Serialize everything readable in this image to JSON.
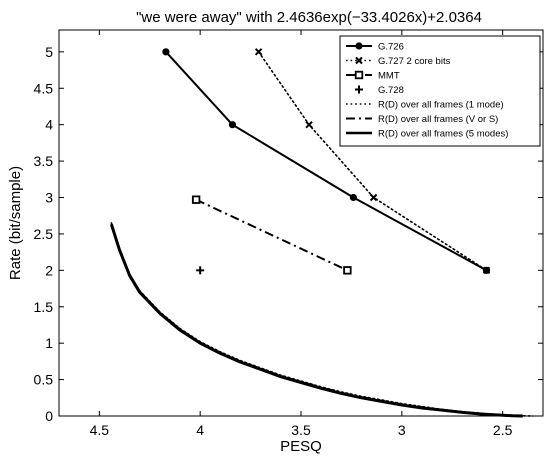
{
  "chart_data": {
    "type": "line",
    "title": "\"we were away\" with 2.4636exp(−33.4026x)+2.0364",
    "xlabel": "PESQ",
    "ylabel": "Rate (bit/sample)",
    "x_reversed": true,
    "xlim": [
      4.7,
      2.3
    ],
    "ylim": [
      0,
      5.3
    ],
    "xticks": [
      4.5,
      4,
      3.5,
      3,
      2.5
    ],
    "xtick_labels": [
      "4.5",
      "4",
      "3.5",
      "3",
      "2.5"
    ],
    "yticks": [
      0,
      0.5,
      1,
      1.5,
      2,
      2.5,
      3,
      3.5,
      4,
      4.5,
      5
    ],
    "ytick_labels": [
      "0",
      "0.5",
      "1",
      "1.5",
      "2",
      "2.5",
      "3",
      "3.5",
      "4",
      "4.5",
      "5"
    ],
    "grid": false,
    "legend_position": "top-right",
    "series": [
      {
        "name": "G.726",
        "style": "solid",
        "marker": "circle",
        "color": "#000000",
        "x": [
          4.17,
          3.84,
          3.24,
          2.58
        ],
        "y": [
          5,
          4,
          3,
          2
        ]
      },
      {
        "name": "G.727 2 core bits",
        "style": "dotted",
        "marker": "x",
        "color": "#000000",
        "x": [
          3.71,
          3.46,
          3.14,
          2.58
        ],
        "y": [
          5,
          4,
          3,
          2
        ]
      },
      {
        "name": "MMT",
        "style": "dashdot",
        "marker": "square",
        "color": "#000000",
        "x": [
          4.02,
          3.27
        ],
        "y": [
          2.97,
          2
        ]
      },
      {
        "name": "G.728",
        "style": "none",
        "marker": "plus",
        "color": "#000000",
        "x": [
          4.0
        ],
        "y": [
          2
        ]
      },
      {
        "name": "R(D) over all frames (1 mode)",
        "style": "dotted",
        "marker": "none",
        "color": "#000000",
        "x": [
          4.44,
          4.4,
          4.35,
          4.3,
          4.2,
          4.1,
          4.0,
          3.9,
          3.8,
          3.7,
          3.6,
          3.5,
          3.4,
          3.3,
          3.2,
          3.1,
          3.0,
          2.9,
          2.8,
          2.7,
          2.6,
          2.5,
          2.45,
          2.35
        ],
        "y": [
          2.65,
          2.3,
          1.95,
          1.72,
          1.43,
          1.2,
          1.02,
          0.88,
          0.76,
          0.66,
          0.56,
          0.48,
          0.4,
          0.33,
          0.27,
          0.22,
          0.17,
          0.13,
          0.09,
          0.06,
          0.035,
          0.015,
          0.005,
          0.0
        ]
      },
      {
        "name": "R(D) over all frames (V or S)",
        "style": "dashdot",
        "marker": "none",
        "color": "#000000",
        "x": [
          4.44,
          4.4,
          4.35,
          4.3,
          4.2,
          4.1,
          4.0,
          3.9,
          3.8,
          3.7,
          3.6,
          3.5,
          3.4,
          3.3,
          3.2,
          3.1,
          3.0,
          2.9,
          2.8,
          2.7,
          2.6,
          2.5,
          2.45,
          2.4
        ],
        "y": [
          2.64,
          2.29,
          1.94,
          1.71,
          1.42,
          1.19,
          1.01,
          0.87,
          0.75,
          0.65,
          0.55,
          0.47,
          0.39,
          0.32,
          0.26,
          0.21,
          0.16,
          0.12,
          0.085,
          0.055,
          0.03,
          0.012,
          0.004,
          0.0
        ]
      },
      {
        "name": "R(D) over all frames (5 modes)",
        "style": "solid-thick",
        "marker": "none",
        "color": "#000000",
        "x": [
          4.44,
          4.4,
          4.35,
          4.3,
          4.2,
          4.1,
          4.0,
          3.9,
          3.8,
          3.7,
          3.6,
          3.5,
          3.4,
          3.3,
          3.2,
          3.1,
          3.0,
          2.9,
          2.8,
          2.7,
          2.6,
          2.5,
          2.45,
          2.4
        ],
        "y": [
          2.63,
          2.28,
          1.93,
          1.7,
          1.41,
          1.18,
          1.0,
          0.86,
          0.74,
          0.64,
          0.54,
          0.46,
          0.38,
          0.31,
          0.25,
          0.2,
          0.15,
          0.11,
          0.08,
          0.05,
          0.025,
          0.01,
          0.003,
          0.0
        ]
      }
    ]
  }
}
